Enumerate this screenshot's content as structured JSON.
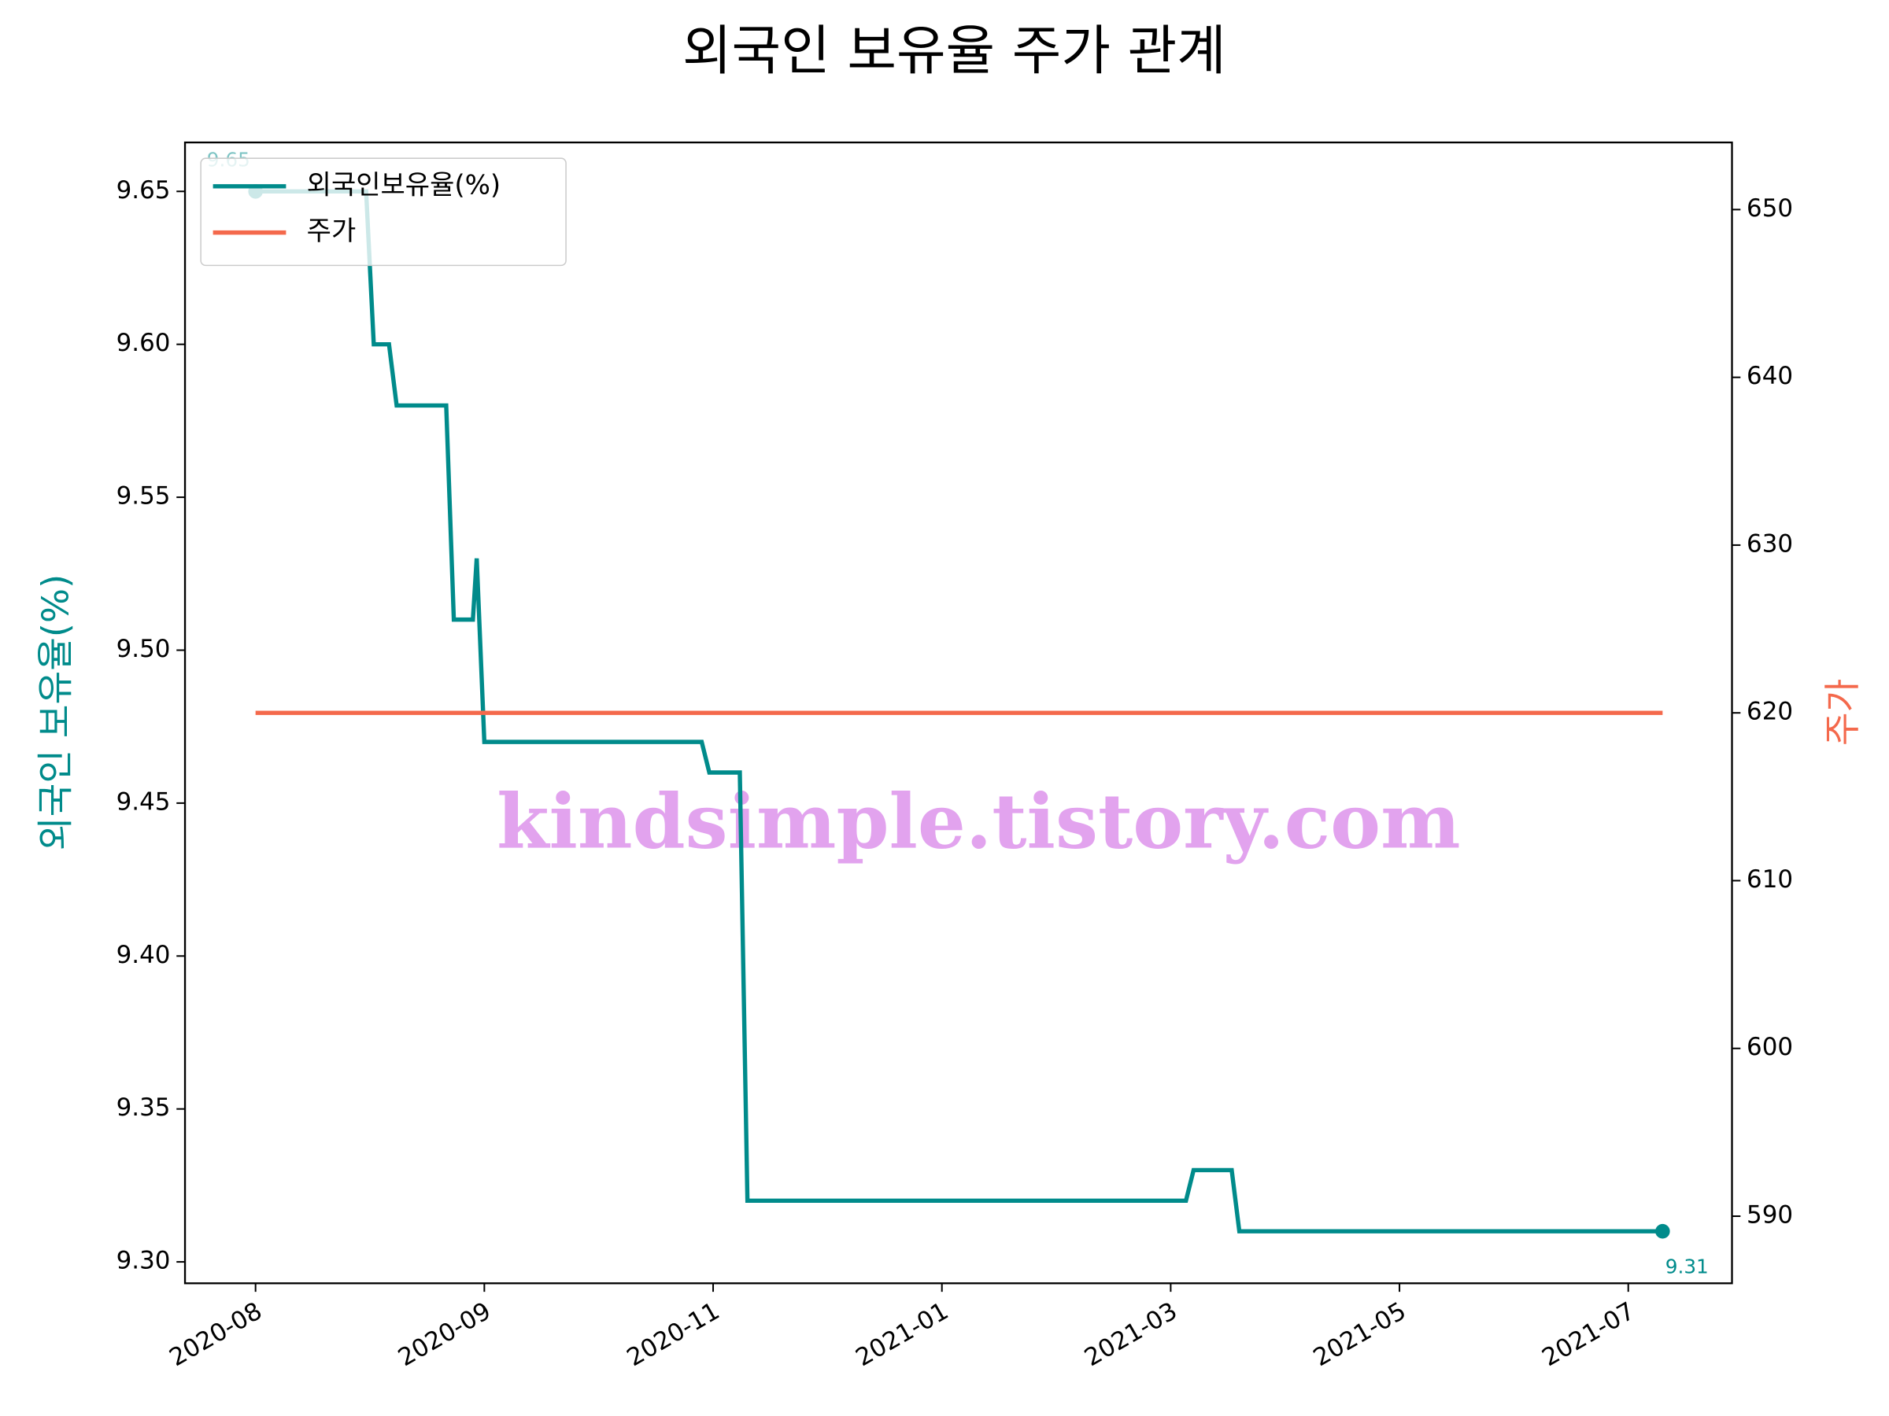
{
  "chart_data": {
    "type": "line",
    "title": "외국인 보유율 주가 관계",
    "ylabel": "외국인 보유율(%)",
    "y2label": "주가",
    "watermark": "kindsimple.tistory.com",
    "x": [
      0,
      29,
      31,
      35,
      37,
      50,
      52,
      57,
      58,
      60,
      117,
      119,
      127,
      129,
      244,
      246,
      256,
      258,
      369
    ],
    "series": [
      {
        "name": "외국인보유율(%)",
        "color": "#008b8b",
        "values": [
          9.65,
          9.65,
          9.6,
          9.6,
          9.58,
          9.58,
          9.51,
          9.51,
          9.53,
          9.47,
          9.47,
          9.46,
          9.46,
          9.32,
          9.32,
          9.33,
          9.33,
          9.31,
          9.31
        ],
        "value_labels": [
          "9.65",
          null,
          null,
          null,
          null,
          null,
          null,
          null,
          null,
          null,
          null,
          null,
          null,
          null,
          null,
          null,
          null,
          null,
          "9.31"
        ]
      },
      {
        "name": "주가",
        "color": "#f4694c",
        "axis": "y2",
        "values": [
          620,
          620,
          620,
          620,
          620,
          620,
          620,
          620,
          620,
          620,
          620,
          620,
          620,
          620,
          620,
          620,
          620,
          620,
          620
        ]
      }
    ],
    "xlim": [
      -18.5,
      387.2
    ],
    "xticks": [
      {
        "value": 0,
        "label": "2020-08"
      },
      {
        "value": 60,
        "label": "2020-09"
      },
      {
        "value": 120,
        "label": "2020-11"
      },
      {
        "value": 180,
        "label": "2021-01"
      },
      {
        "value": 240,
        "label": "2021-03"
      },
      {
        "value": 300,
        "label": "2021-05"
      },
      {
        "value": 360,
        "label": "2021-07"
      }
    ],
    "ylim": [
      9.293,
      9.666
    ],
    "yticks": [
      {
        "value": 9.3,
        "label": "9.30"
      },
      9.35,
      {
        "value": 9.4,
        "label": "9.40"
      },
      9.45,
      {
        "value": 9.5,
        "label": "9.50"
      },
      9.55,
      {
        "value": 9.6,
        "label": "9.60"
      },
      9.65
    ],
    "y2lim": [
      586,
      654
    ],
    "y2ticks": [
      590,
      600,
      610,
      620,
      630,
      640,
      650
    ],
    "legend": "upper left",
    "grid": false
  }
}
